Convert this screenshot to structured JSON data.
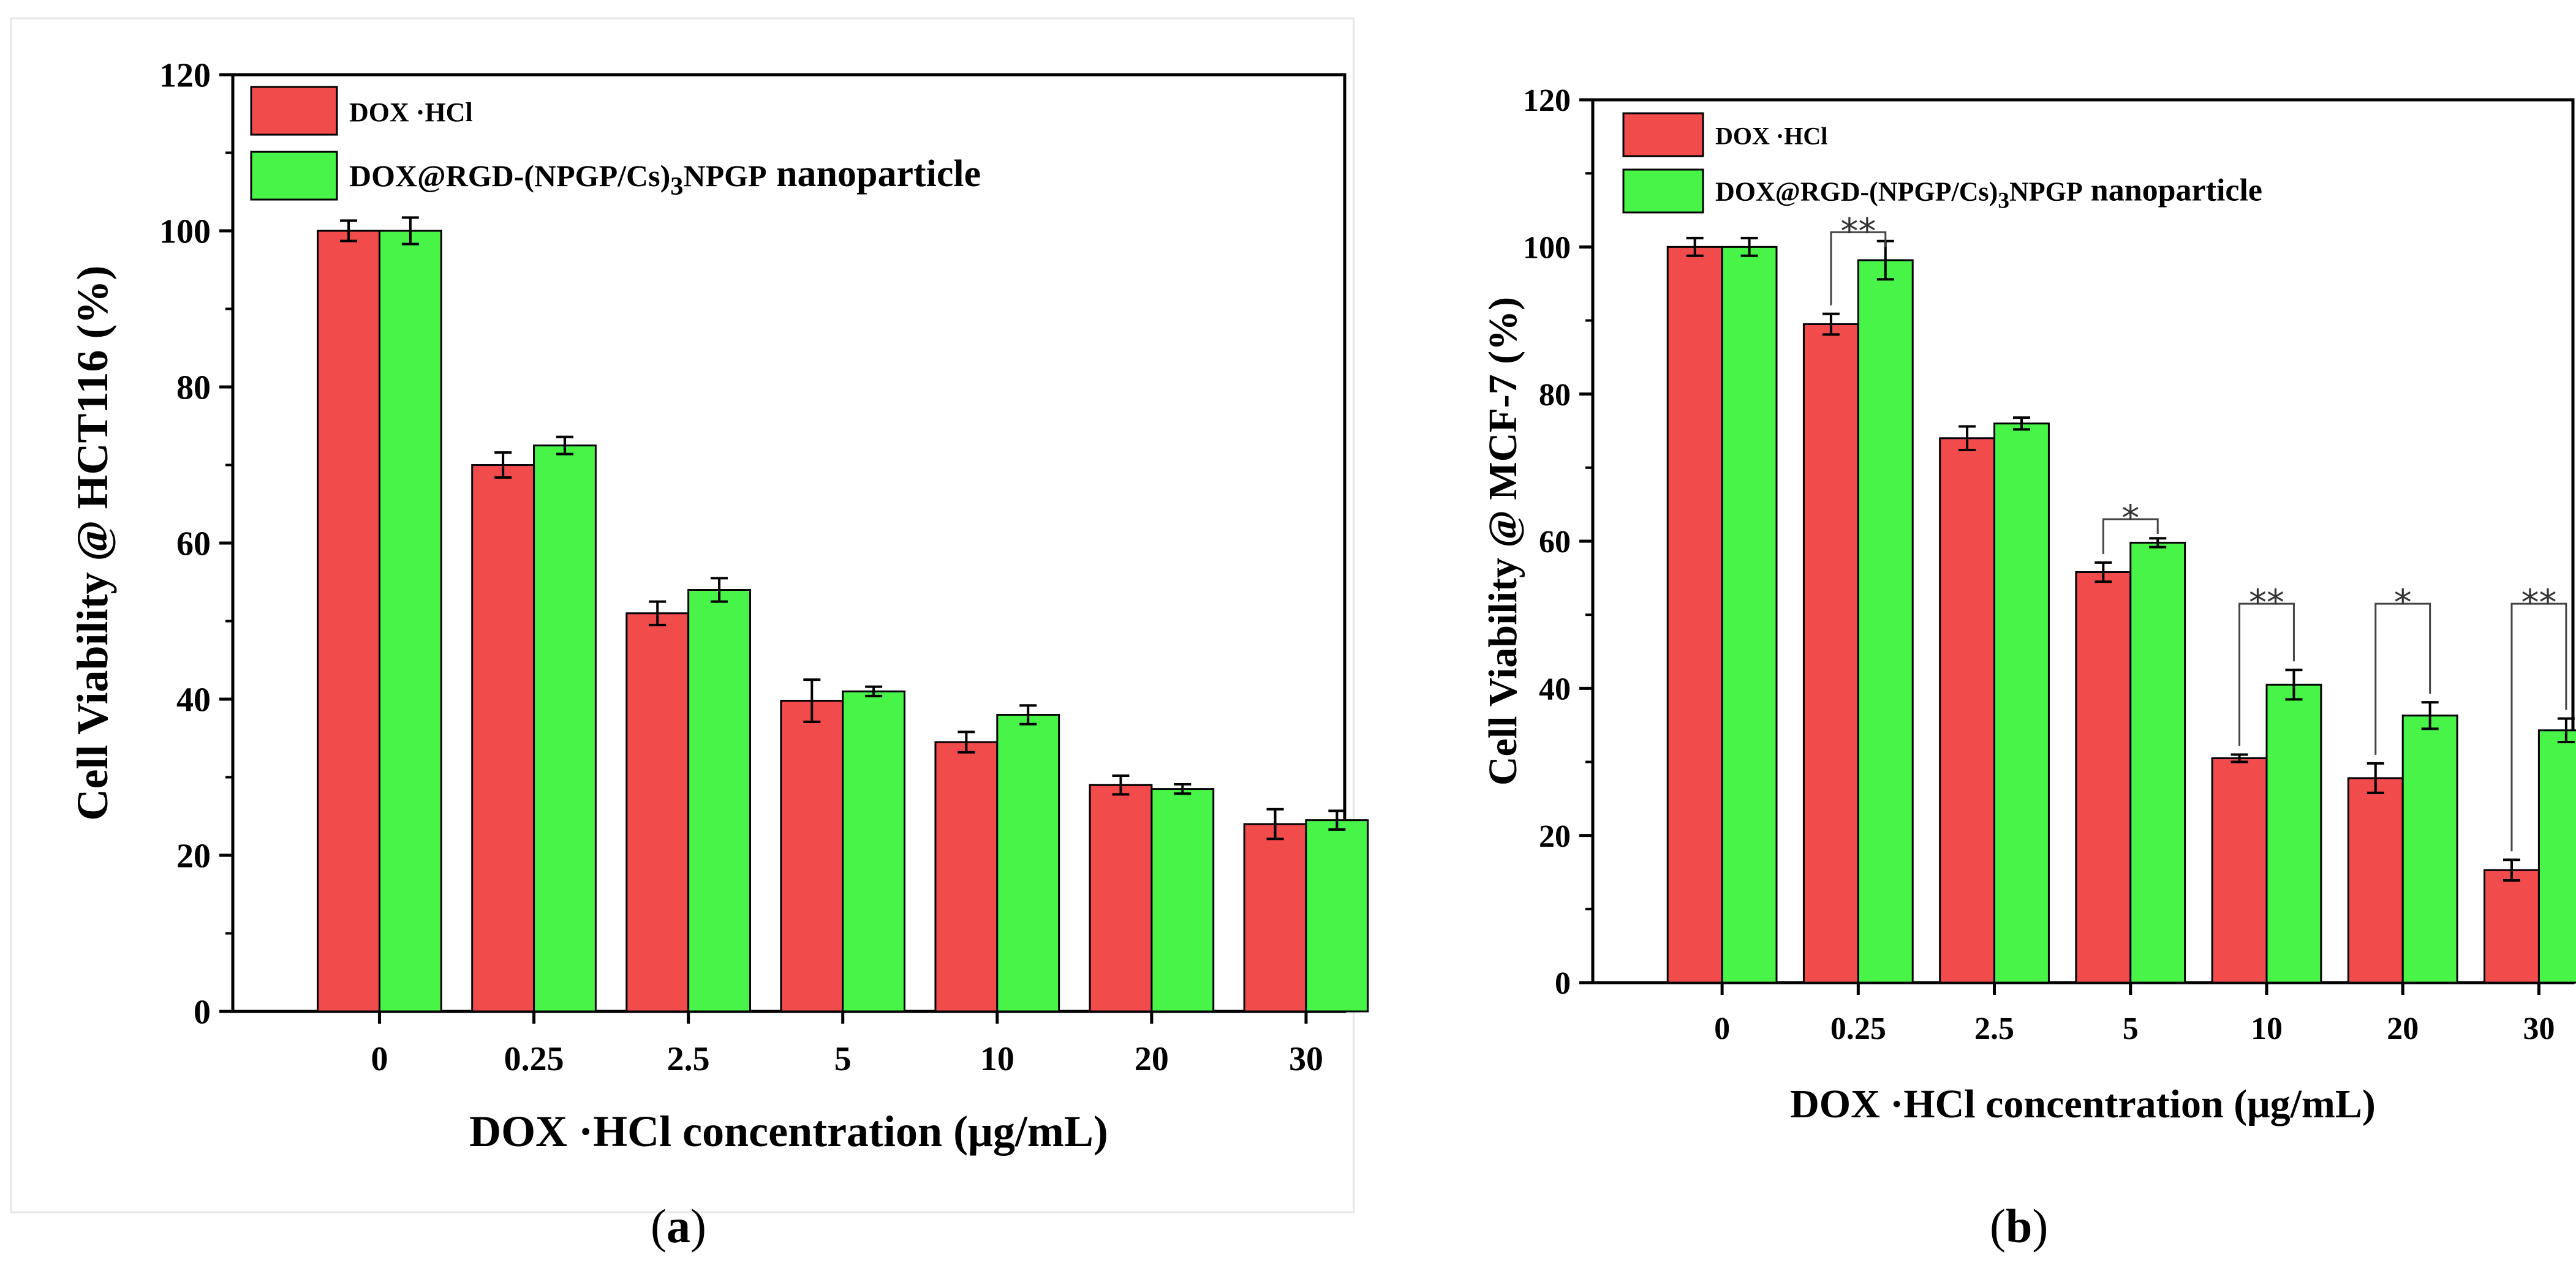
{
  "chart_data": [
    {
      "type": "bar",
      "panel": "a",
      "title": "",
      "xlabel": "DOX ·HCl concentration (μg/mL)",
      "ylabel": "Cell Viability @ HCT116 (%)",
      "ylim": [
        0,
        120
      ],
      "yticks": [
        "0",
        "20",
        "40",
        "60",
        "80",
        "100",
        "120"
      ],
      "categories": [
        "0",
        "0.25",
        "2.5",
        "5",
        "10",
        "20",
        "30"
      ],
      "legend_position": "top-left",
      "series": [
        {
          "name": "DOX ·HCl",
          "color": "#f24b4b",
          "values": [
            100,
            70,
            51,
            39.8,
            34.5,
            29,
            24
          ],
          "errors": [
            1.3,
            1.6,
            1.5,
            2.7,
            1.3,
            1.2,
            1.9
          ]
        },
        {
          "name": "DOX@RGD-(NPGP/Cs)3NPGP nanoparticle",
          "color": "#47f447",
          "values": [
            100,
            72.5,
            54,
            41,
            38,
            28.5,
            24.5
          ],
          "errors": [
            1.7,
            1.1,
            1.5,
            0.6,
            1.2,
            0.6,
            1.2
          ]
        }
      ],
      "annotations": []
    },
    {
      "type": "bar",
      "panel": "b",
      "title": "",
      "xlabel": "DOX ·HCl concentration (μg/mL)",
      "ylabel": "Cell Viability @ MCF-7 (%)",
      "ylim": [
        0,
        120
      ],
      "yticks": [
        "0",
        "20",
        "40",
        "60",
        "80",
        "100",
        "120"
      ],
      "categories": [
        "0",
        "0.25",
        "2.5",
        "5",
        "10",
        "20",
        "30"
      ],
      "legend_position": "top-left",
      "series": [
        {
          "name": "DOX ·HCl",
          "color": "#f24b4b",
          "values": [
            100,
            89.5,
            74,
            55.8,
            30.5,
            27.8,
            15.3
          ],
          "errors": [
            1.2,
            1.4,
            1.6,
            1.3,
            0.5,
            2.0,
            1.4
          ]
        },
        {
          "name": "DOX@RGD-(NPGP/Cs)3NPGP nanoparticle",
          "color": "#47f447",
          "values": [
            100,
            98.2,
            76,
            59.8,
            40.5,
            36.3,
            34.3
          ],
          "errors": [
            1.2,
            2.6,
            0.8,
            0.6,
            2.0,
            1.8,
            1.6
          ]
        }
      ],
      "annotations": [
        {
          "category_index": 1,
          "label": "**",
          "bracket_value": 102
        },
        {
          "category_index": 3,
          "label": "*",
          "bracket_value": 63
        },
        {
          "category_index": 4,
          "label": "**",
          "bracket_value": 51.5
        },
        {
          "category_index": 5,
          "label": "*",
          "bracket_value": 51.5
        },
        {
          "category_index": 6,
          "label": "**",
          "bracket_value": 51.5
        }
      ]
    }
  ],
  "captions": {
    "a": "a",
    "b": "b"
  },
  "colors": {
    "dox_red": "#f24b4b",
    "nanoparticle_green": "#47f447",
    "axis": "#000000"
  }
}
